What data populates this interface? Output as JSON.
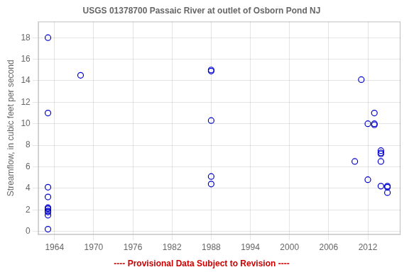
{
  "chart_data": {
    "type": "scatter",
    "title": "USGS 01378700 Passaic River at outlet of Osborn Pond NJ",
    "y_label": "Streamflow, in cubic feet per second",
    "annotations": [
      "---- Provisional Data Subject to Revision ----"
    ],
    "x": [
      1963,
      1963,
      1963,
      1963,
      1963,
      1963,
      1963,
      1963,
      1963,
      1963,
      1963,
      1968,
      1988,
      1988,
      1988,
      1988,
      1988,
      2010,
      2011,
      2012,
      2012,
      2013,
      2013,
      2013,
      2014,
      2014,
      2014,
      2014,
      2014,
      2015,
      2015,
      2015
    ],
    "values": [
      18.0,
      11.0,
      4.1,
      3.2,
      2.2,
      2.1,
      2.1,
      1.9,
      1.8,
      1.5,
      0.2,
      14.5,
      15.0,
      14.9,
      10.3,
      5.1,
      4.4,
      6.5,
      14.1,
      10.0,
      4.8,
      11.0,
      10.0,
      9.9,
      7.5,
      7.3,
      7.2,
      6.5,
      4.2,
      4.2,
      4.1,
      3.6
    ],
    "color": "#0000cc",
    "marker": "circle",
    "xlim": [
      1961.5,
      2017
    ],
    "ylim": [
      -0.3,
      19.5
    ],
    "xticks": [
      1964,
      1970,
      1976,
      1982,
      1988,
      1994,
      2000,
      2006,
      2012
    ],
    "yticks": [
      0,
      2,
      4,
      6,
      8,
      10,
      12,
      14,
      16,
      18
    ],
    "grid": true
  }
}
